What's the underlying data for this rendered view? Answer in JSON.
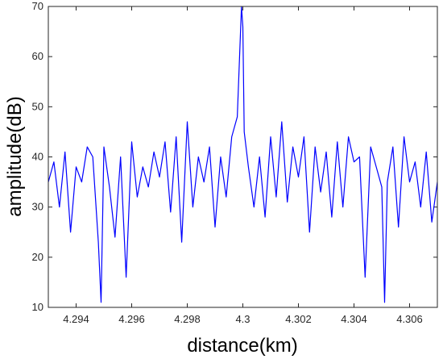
{
  "chart_data": {
    "type": "line",
    "title": "",
    "xlabel": "distance(km)",
    "ylabel": "amplitude(dB)",
    "xlim": [
      4.293,
      4.307
    ],
    "ylim": [
      10,
      70
    ],
    "x_ticks": [
      4.294,
      4.296,
      4.298,
      4.3,
      4.302,
      4.304,
      4.306
    ],
    "x_tick_labels": [
      "4.294",
      "4.296",
      "4.298",
      "4.3",
      "4.302",
      "4.304",
      "4.306"
    ],
    "y_ticks": [
      10,
      20,
      30,
      40,
      50,
      60,
      70
    ],
    "y_tick_labels": [
      "10",
      "20",
      "30",
      "40",
      "50",
      "60",
      "70"
    ],
    "grid": false,
    "line_color": "#0000ff",
    "series": [
      {
        "x": [
          4.293,
          4.2932,
          4.2934,
          4.2936,
          4.2938,
          4.294,
          4.2942,
          4.2944,
          4.2946,
          4.2948,
          4.2949,
          4.295,
          4.2952,
          4.2954,
          4.2956,
          4.2958,
          4.296,
          4.2962,
          4.2964,
          4.2966,
          4.2968,
          4.297,
          4.2972,
          4.2974,
          4.2976,
          4.2978,
          4.298,
          4.2982,
          4.2984,
          4.2986,
          4.2988,
          4.299,
          4.2992,
          4.2994,
          4.2996,
          4.2998,
          4.29995,
          4.3,
          4.30005,
          4.3002,
          4.3004,
          4.3006,
          4.3008,
          4.301,
          4.3012,
          4.3014,
          4.3016,
          4.3018,
          4.302,
          4.3022,
          4.3024,
          4.3026,
          4.3028,
          4.303,
          4.3032,
          4.3034,
          4.3036,
          4.3038,
          4.304,
          4.3042,
          4.3044,
          4.3046,
          4.3048,
          4.305,
          4.3051,
          4.3052,
          4.3054,
          4.3056,
          4.3058,
          4.306,
          4.3062,
          4.3064,
          4.3066,
          4.3068,
          4.307
        ],
        "y": [
          35,
          39,
          30,
          41,
          25,
          38,
          35,
          42,
          40,
          23,
          11,
          42,
          34,
          24,
          40,
          16,
          43,
          32,
          38,
          34,
          41,
          36,
          43,
          29,
          44,
          23,
          47,
          30,
          40,
          35,
          42,
          26,
          40,
          32,
          44,
          48,
          70,
          66,
          45,
          38,
          30,
          40,
          28,
          44,
          32,
          47,
          31,
          42,
          36,
          44,
          25,
          42,
          33,
          41,
          28,
          43,
          30,
          44,
          39,
          40,
          16,
          42,
          38,
          34,
          11,
          35,
          42,
          26,
          44,
          35,
          39,
          30,
          41,
          27,
          35
        ]
      }
    ]
  }
}
